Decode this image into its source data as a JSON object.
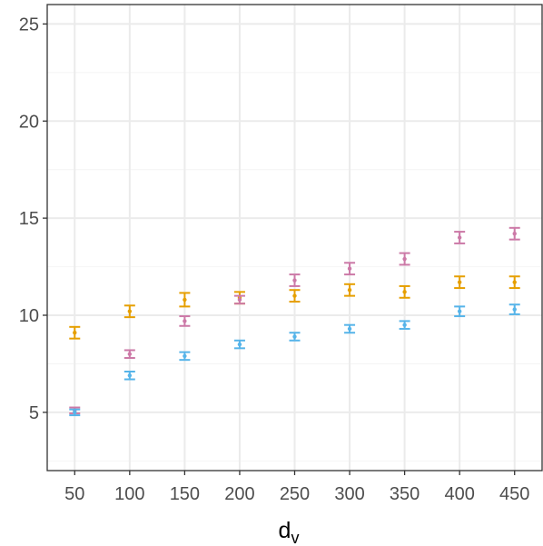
{
  "chart_data": {
    "type": "scatter",
    "xlabel": "d",
    "xlabel_subscript": "v",
    "ylabel": "",
    "x": [
      50,
      100,
      150,
      200,
      250,
      300,
      350,
      400,
      450
    ],
    "x_tick_labels": [
      "50",
      "100",
      "150",
      "200",
      "250",
      "300",
      "350",
      "400",
      "450"
    ],
    "y_ticks": [
      5,
      10,
      15,
      20,
      25
    ],
    "y_tick_labels": [
      "5",
      "10",
      "15",
      "20",
      "25"
    ],
    "xlim": [
      25,
      475
    ],
    "ylim": [
      2,
      26
    ],
    "grid": true,
    "legend": "none",
    "colors": {
      "orange": "#E69F00",
      "pink": "#CC79A7",
      "blue": "#56B4E9",
      "grid_major": "#ebebeb",
      "grid_minor": "#f4f4f4",
      "panel_border": "#333333",
      "tick_text": "#4d4d4d"
    },
    "series": [
      {
        "color": "#E69F00",
        "values": [
          9.1,
          10.2,
          10.8,
          10.9,
          11.0,
          11.3,
          11.2,
          11.7,
          11.7
        ],
        "err": [
          0.3,
          0.3,
          0.35,
          0.3,
          0.3,
          0.3,
          0.3,
          0.3,
          0.3
        ]
      },
      {
        "color": "#CC79A7",
        "values": [
          5.1,
          8.0,
          9.7,
          10.8,
          11.8,
          12.4,
          12.9,
          14.0,
          14.2
        ],
        "err": [
          0.15,
          0.2,
          0.25,
          0.2,
          0.3,
          0.3,
          0.3,
          0.3,
          0.3
        ]
      },
      {
        "color": "#56B4E9",
        "values": [
          5.0,
          6.9,
          7.9,
          8.5,
          8.9,
          9.3,
          9.5,
          10.2,
          10.3
        ],
        "err": [
          0.15,
          0.2,
          0.2,
          0.2,
          0.2,
          0.2,
          0.2,
          0.25,
          0.25
        ]
      }
    ]
  }
}
